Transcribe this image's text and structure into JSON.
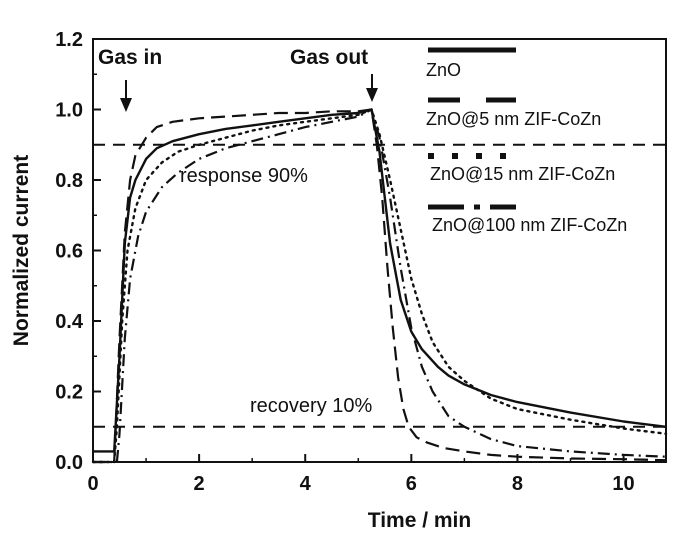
{
  "chart_data": {
    "type": "line",
    "title": "",
    "xlabel": "Time / min",
    "ylabel": "Normalized current",
    "xlim": [
      0,
      10.8
    ],
    "ylim": [
      0,
      1.2
    ],
    "xticks": [
      "0",
      "2",
      "4",
      "6",
      "8",
      "10"
    ],
    "yticks": [
      "0.0",
      "0.2",
      "0.4",
      "0.6",
      "0.8",
      "1.0",
      "1.2"
    ],
    "grid": false,
    "legend_position": "top-right",
    "annotations": {
      "gas_in": "Gas in",
      "gas_out": "Gas out",
      "response": "response 90%",
      "recovery": "recovery 10%"
    },
    "reference_lines": [
      0.9,
      0.1
    ],
    "series": [
      {
        "name": "ZnO",
        "dash": "solid",
        "x": [
          0,
          0.35,
          0.4,
          0.5,
          0.6,
          0.7,
          0.8,
          1.0,
          1.2,
          1.5,
          2.0,
          2.5,
          3.0,
          3.5,
          4.0,
          4.5,
          5.0,
          5.25,
          5.4,
          5.5,
          5.6,
          5.8,
          6.0,
          6.2,
          6.5,
          6.7,
          7.0,
          7.5,
          8.0,
          9.0,
          10.0,
          10.8
        ],
        "y": [
          0.03,
          0.03,
          0.03,
          0.3,
          0.62,
          0.75,
          0.8,
          0.86,
          0.89,
          0.91,
          0.93,
          0.945,
          0.955,
          0.965,
          0.975,
          0.985,
          0.99,
          1.0,
          0.88,
          0.75,
          0.62,
          0.46,
          0.37,
          0.32,
          0.27,
          0.245,
          0.22,
          0.19,
          0.17,
          0.14,
          0.115,
          0.1
        ]
      },
      {
        "name": "ZnO@5 nm ZIF-CoZn",
        "dash": "dash",
        "x": [
          0,
          0.35,
          0.4,
          0.5,
          0.6,
          0.7,
          0.8,
          1.0,
          1.2,
          1.5,
          2.0,
          2.5,
          3.0,
          3.5,
          4.0,
          4.5,
          5.0,
          5.25,
          5.35,
          5.45,
          5.55,
          5.65,
          5.75,
          5.85,
          5.95,
          6.1,
          6.3,
          6.6,
          7.0,
          7.5,
          8.0,
          9.0,
          10.0,
          10.8
        ],
        "y": [
          0.0,
          0.0,
          0.0,
          0.35,
          0.65,
          0.8,
          0.87,
          0.92,
          0.95,
          0.965,
          0.975,
          0.98,
          0.985,
          0.99,
          0.99,
          0.995,
          0.995,
          1.0,
          0.9,
          0.75,
          0.55,
          0.38,
          0.24,
          0.15,
          0.1,
          0.07,
          0.055,
          0.04,
          0.03,
          0.02,
          0.015,
          0.01,
          0.008,
          0.005
        ]
      },
      {
        "name": "ZnO@15 nm ZIF-CoZn",
        "dash": "dot",
        "x": [
          0,
          0.4,
          0.45,
          0.55,
          0.65,
          0.8,
          1.0,
          1.3,
          1.6,
          2.0,
          2.5,
          3.0,
          3.5,
          4.0,
          4.5,
          5.0,
          5.25,
          5.4,
          5.6,
          5.8,
          6.0,
          6.2,
          6.4,
          6.7,
          7.0,
          7.5,
          8.0,
          9.0,
          10.0,
          10.8
        ],
        "y": [
          0.0,
          0.0,
          0.1,
          0.4,
          0.6,
          0.72,
          0.8,
          0.85,
          0.88,
          0.9,
          0.92,
          0.94,
          0.955,
          0.965,
          0.975,
          0.985,
          1.0,
          0.93,
          0.8,
          0.66,
          0.52,
          0.42,
          0.34,
          0.27,
          0.23,
          0.18,
          0.15,
          0.12,
          0.095,
          0.08
        ]
      },
      {
        "name": "ZnO@100 nm ZIF-CoZn",
        "dash": "dashdot",
        "x": [
          0,
          0.45,
          0.5,
          0.6,
          0.7,
          0.85,
          1.0,
          1.3,
          1.6,
          2.0,
          2.5,
          3.0,
          3.5,
          4.0,
          4.5,
          5.0,
          5.25,
          5.4,
          5.6,
          5.8,
          6.0,
          6.2,
          6.4,
          6.7,
          7.0,
          7.5,
          8.0,
          9.0,
          10.0,
          10.8
        ],
        "y": [
          0.0,
          0.0,
          0.08,
          0.35,
          0.52,
          0.64,
          0.71,
          0.78,
          0.82,
          0.86,
          0.89,
          0.91,
          0.93,
          0.95,
          0.965,
          0.98,
          1.0,
          0.92,
          0.75,
          0.55,
          0.38,
          0.27,
          0.2,
          0.13,
          0.1,
          0.065,
          0.045,
          0.03,
          0.02,
          0.015
        ]
      }
    ]
  }
}
